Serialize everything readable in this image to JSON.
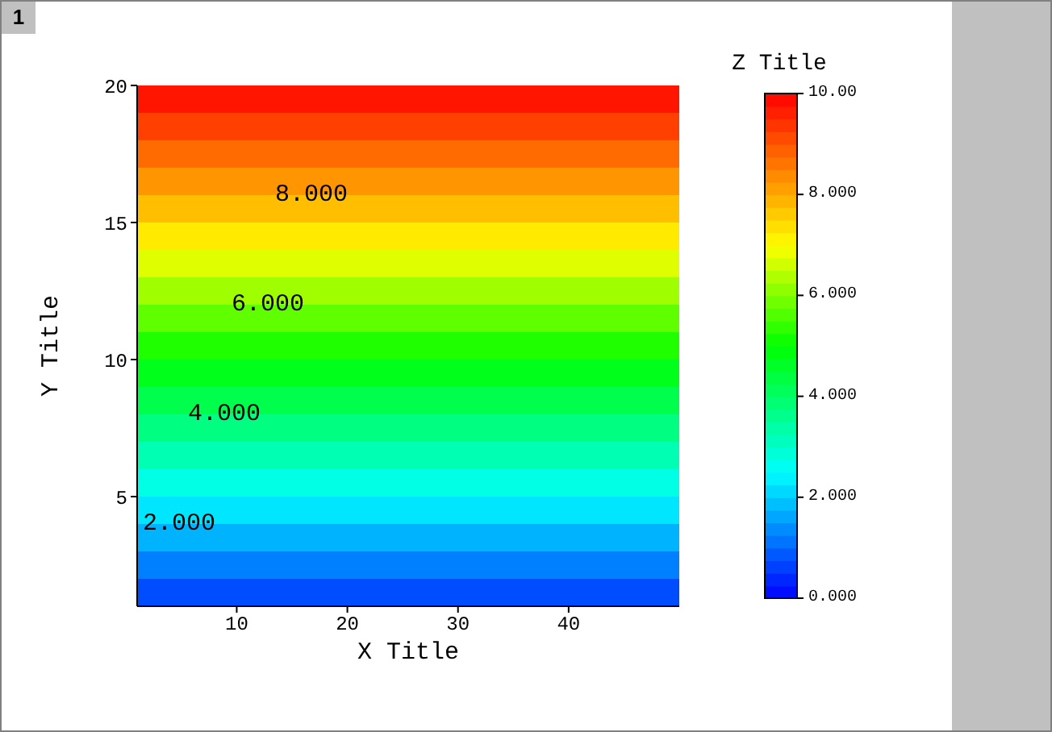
{
  "chart_data": {
    "type": "heatmap",
    "xlabel": "X Title",
    "ylabel": "Y Title",
    "clabel": "Z Title",
    "cells": [
      [
        9.75
      ],
      [
        9.25
      ],
      [
        8.75
      ],
      [
        8.25
      ],
      [
        7.75
      ],
      [
        7.25
      ],
      [
        6.75
      ],
      [
        6.25
      ],
      [
        5.75
      ],
      [
        5.25
      ],
      [
        4.75
      ],
      [
        4.25
      ],
      [
        3.75
      ],
      [
        3.25
      ],
      [
        2.75
      ],
      [
        2.25
      ],
      [
        1.75
      ],
      [
        1.25
      ],
      [
        0.75
      ]
    ],
    "xlim": [
      1,
      50
    ],
    "xticks": [
      10,
      20,
      30,
      40
    ],
    "ylim": [
      1,
      20
    ],
    "yticks": [
      5,
      10,
      15,
      20
    ],
    "clim": [
      0,
      10
    ],
    "cticks": [
      {
        "value": 0,
        "label": "0.000"
      },
      {
        "value": 2,
        "label": "2.000"
      },
      {
        "value": 4,
        "label": "4.000"
      },
      {
        "value": 6,
        "label": "6.000"
      },
      {
        "value": 8,
        "label": "8.000"
      },
      {
        "value": 10,
        "label": "10.00"
      }
    ],
    "annotations": [
      "1",
      "2.000",
      "4.000",
      "6.000",
      "8.000"
    ]
  }
}
